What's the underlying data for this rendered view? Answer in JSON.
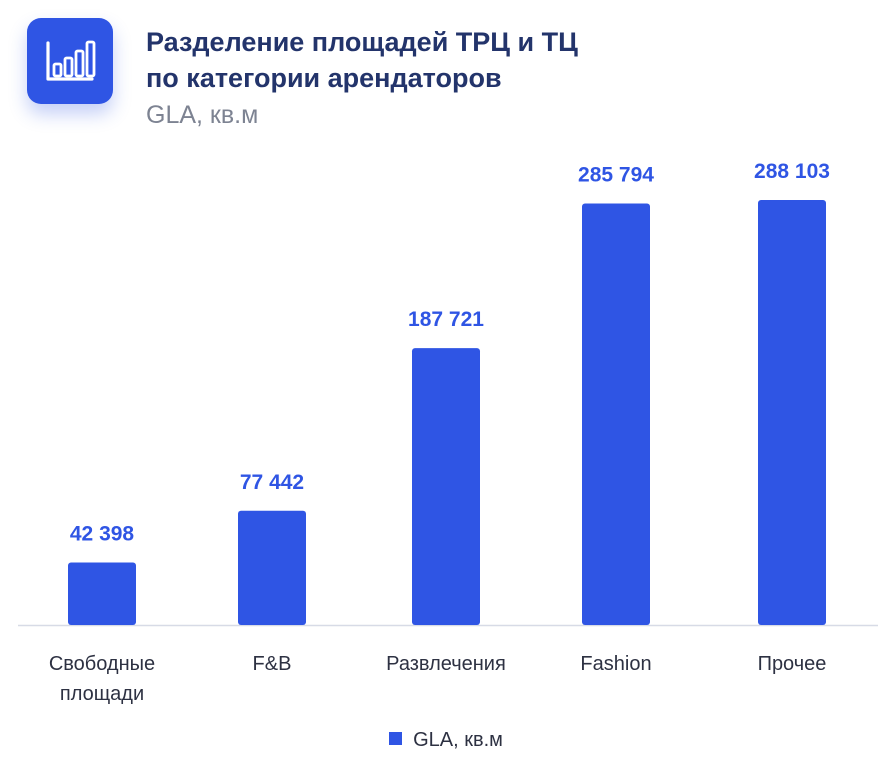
{
  "header": {
    "icon": "bar-chart-icon",
    "title_line1": "Разделение площадей ТРЦ и ТЦ",
    "title_line2": "по категории арендаторов",
    "subtitle": "GLA, кв.м"
  },
  "colors": {
    "bar": "#2f55e4",
    "label": "#2f55e4",
    "title": "#23346b",
    "axis": "#d7dbe6"
  },
  "chart_data": {
    "type": "bar",
    "categories": [
      [
        "Свободные",
        "площади"
      ],
      [
        "F&B"
      ],
      [
        "Развлечения"
      ],
      [
        "Fashion"
      ],
      [
        "Прочее"
      ]
    ],
    "series": [
      {
        "name": "GLA, кв.м",
        "values": [
          42398,
          77442,
          187721,
          285794,
          288103
        ]
      }
    ],
    "data_labels": [
      "42 398",
      "77 442",
      "187 721",
      "285 794",
      "288 103"
    ],
    "title": "Разделение площадей ТРЦ и ТЦ по категории арендаторов",
    "ylabel": "GLA, кв.м",
    "ylim": [
      0,
      300000
    ],
    "grid": false,
    "legend": "bottom-center"
  },
  "legend": {
    "label": "GLA, кв.м"
  }
}
